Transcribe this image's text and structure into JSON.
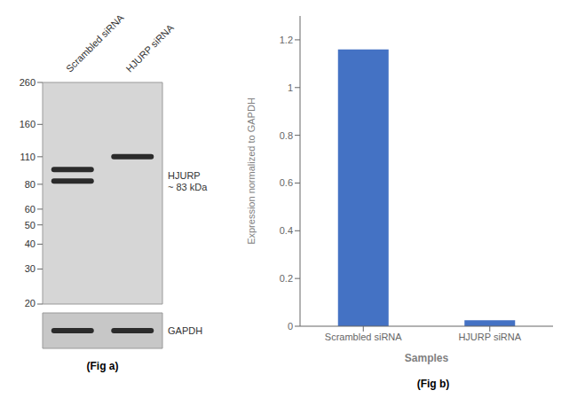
{
  "chart_data": [
    {
      "type": "blot",
      "title": "(Fig a)",
      "categories": [
        "Scrambled siRNA",
        "HJURP siRNA"
      ],
      "log": "y",
      "ylim": [
        20,
        260
      ],
      "yticks": [
        260,
        160,
        110,
        80,
        60,
        50,
        40,
        30,
        20
      ],
      "bands": [
        {
          "lane": "Scrambled siRNA",
          "y": 83
        },
        {
          "lane": "Scrambled siRNA",
          "y": 95
        },
        {
          "lane": "HJURP siRNA",
          "y": 110
        }
      ],
      "annotations": [
        {
          "text": "HJURP\n~ 83 kDa",
          "y": 83
        },
        {
          "text": "GAPDH"
        }
      ]
    },
    {
      "type": "bar",
      "title": "(Fig b)",
      "categories": [
        "Scrambled siRNA",
        "HJURP siRNA"
      ],
      "values": [
        1.16,
        0.025
      ],
      "color": "#4472c4",
      "ylim": [
        0,
        1.3
      ],
      "yticks": [
        0,
        0.2,
        0.4,
        0.6,
        0.8,
        1,
        1.2
      ],
      "xlabel": "Samples",
      "ylabel": "Expression normalized to GAPDH",
      "grid": false
    }
  ]
}
